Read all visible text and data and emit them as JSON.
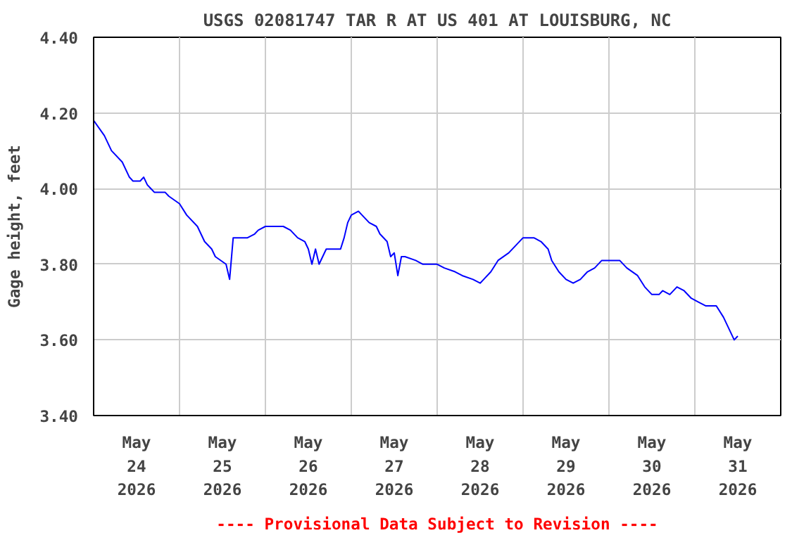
{
  "chart_data": {
    "type": "line",
    "title": "USGS 02081747 TAR R AT US 401 AT LOUISBURG, NC",
    "ylabel": "Gage height, feet",
    "annotations": [
      "---- Provisional Data Subject to Revision ----"
    ],
    "xlim": [
      "2026-05-24T00:00",
      "2026-06-01T00:00"
    ],
    "xticks": [
      {
        "value": "2026-05-24T12:00",
        "label": "May\n24\n2026"
      },
      {
        "value": "2026-05-25T12:00",
        "label": "May\n25\n2026"
      },
      {
        "value": "2026-05-26T12:00",
        "label": "May\n26\n2026"
      },
      {
        "value": "2026-05-27T12:00",
        "label": "May\n27\n2026"
      },
      {
        "value": "2026-05-28T12:00",
        "label": "May\n28\n2026"
      },
      {
        "value": "2026-05-29T12:00",
        "label": "May\n29\n2026"
      },
      {
        "value": "2026-05-30T12:00",
        "label": "May\n30\n2026"
      },
      {
        "value": "2026-05-31T12:00",
        "label": "May\n31\n2026"
      },
      {
        "value": "2026-05-25T00:00",
        "label": null
      },
      {
        "value": "2026-05-26T00:00",
        "label": null
      },
      {
        "value": "2026-05-27T00:00",
        "label": null
      },
      {
        "value": "2026-05-28T00:00",
        "label": null
      },
      {
        "value": "2026-05-29T00:00",
        "label": null
      },
      {
        "value": "2026-05-30T00:00",
        "label": null
      },
      {
        "value": "2026-05-31T00:00",
        "label": null
      }
    ],
    "ylim": [
      3.4,
      4.4
    ],
    "yticks": [
      {
        "value": 3.4,
        "label": "3.40"
      },
      {
        "value": 3.6,
        "label": "3.60"
      },
      {
        "value": 3.8,
        "label": "3.80"
      },
      {
        "value": 4.0,
        "label": "4.00"
      },
      {
        "value": 4.2,
        "label": "4.20"
      },
      {
        "value": 4.4,
        "label": "4.40"
      }
    ],
    "grid": true,
    "marker": "none",
    "line_style": "solid",
    "series": [
      {
        "color": "#0000ff",
        "x": [
          "2026-05-24T00:00",
          "2026-05-24T03:00",
          "2026-05-24T05:00",
          "2026-05-24T08:00",
          "2026-05-24T10:00",
          "2026-05-24T11:00",
          "2026-05-24T13:00",
          "2026-05-24T14:00",
          "2026-05-24T15:00",
          "2026-05-24T16:00",
          "2026-05-24T17:00",
          "2026-05-24T20:00",
          "2026-05-24T21:00",
          "2026-05-25T00:00",
          "2026-05-25T02:00",
          "2026-05-25T05:00",
          "2026-05-25T07:00",
          "2026-05-25T09:00",
          "2026-05-25T10:00",
          "2026-05-25T13:00",
          "2026-05-25T14:00",
          "2026-05-25T15:00",
          "2026-05-25T19:00",
          "2026-05-25T21:00",
          "2026-05-25T22:00",
          "2026-05-26T00:00",
          "2026-05-26T05:00",
          "2026-05-26T07:00",
          "2026-05-26T09:00",
          "2026-05-26T11:00",
          "2026-05-26T12:00",
          "2026-05-26T13:00",
          "2026-05-26T14:00",
          "2026-05-26T15:00",
          "2026-05-26T17:00",
          "2026-05-26T21:00",
          "2026-05-26T22:00",
          "2026-05-26T23:00",
          "2026-05-27T00:00",
          "2026-05-27T02:00",
          "2026-05-27T03:00",
          "2026-05-27T05:00",
          "2026-05-27T07:00",
          "2026-05-27T08:00",
          "2026-05-27T10:00",
          "2026-05-27T11:00",
          "2026-05-27T12:00",
          "2026-05-27T13:00",
          "2026-05-27T14:00",
          "2026-05-27T15:00",
          "2026-05-27T18:00",
          "2026-05-27T20:00",
          "2026-05-28T00:00",
          "2026-05-28T02:00",
          "2026-05-28T05:00",
          "2026-05-28T07:00",
          "2026-05-28T10:00",
          "2026-05-28T12:00",
          "2026-05-28T13:00",
          "2026-05-28T15:00",
          "2026-05-28T17:00",
          "2026-05-28T20:00",
          "2026-05-28T22:00",
          "2026-05-29T00:00",
          "2026-05-29T03:00",
          "2026-05-29T05:00",
          "2026-05-29T07:00",
          "2026-05-29T08:00",
          "2026-05-29T10:00",
          "2026-05-29T12:00",
          "2026-05-29T14:00",
          "2026-05-29T16:00",
          "2026-05-29T18:00",
          "2026-05-29T20:00",
          "2026-05-29T22:00",
          "2026-05-30T03:00",
          "2026-05-30T05:00",
          "2026-05-30T08:00",
          "2026-05-30T10:00",
          "2026-05-30T12:00",
          "2026-05-30T14:00",
          "2026-05-30T15:00",
          "2026-05-30T17:00",
          "2026-05-30T19:00",
          "2026-05-30T21:00",
          "2026-05-30T23:00",
          "2026-05-31T01:00",
          "2026-05-31T03:00",
          "2026-05-31T06:00",
          "2026-05-31T08:00",
          "2026-05-31T09:00",
          "2026-05-31T10:00",
          "2026-05-31T11:00",
          "2026-05-31T12:00"
        ],
        "values": [
          4.18,
          4.14,
          4.1,
          4.07,
          4.03,
          4.02,
          4.02,
          4.03,
          4.01,
          4.0,
          3.99,
          3.99,
          3.98,
          3.96,
          3.93,
          3.9,
          3.86,
          3.84,
          3.82,
          3.8,
          3.76,
          3.87,
          3.87,
          3.88,
          3.89,
          3.9,
          3.9,
          3.89,
          3.87,
          3.86,
          3.84,
          3.8,
          3.84,
          3.8,
          3.84,
          3.84,
          3.87,
          3.91,
          3.93,
          3.94,
          3.93,
          3.91,
          3.9,
          3.88,
          3.86,
          3.82,
          3.83,
          3.77,
          3.82,
          3.82,
          3.81,
          3.8,
          3.8,
          3.79,
          3.78,
          3.77,
          3.76,
          3.75,
          3.76,
          3.78,
          3.81,
          3.83,
          3.85,
          3.87,
          3.87,
          3.86,
          3.84,
          3.81,
          3.78,
          3.76,
          3.75,
          3.76,
          3.78,
          3.79,
          3.81,
          3.81,
          3.79,
          3.77,
          3.74,
          3.72,
          3.72,
          3.73,
          3.72,
          3.74,
          3.73,
          3.71,
          3.7,
          3.69,
          3.69,
          3.66,
          3.64,
          3.62,
          3.6,
          3.61
        ]
      }
    ]
  }
}
